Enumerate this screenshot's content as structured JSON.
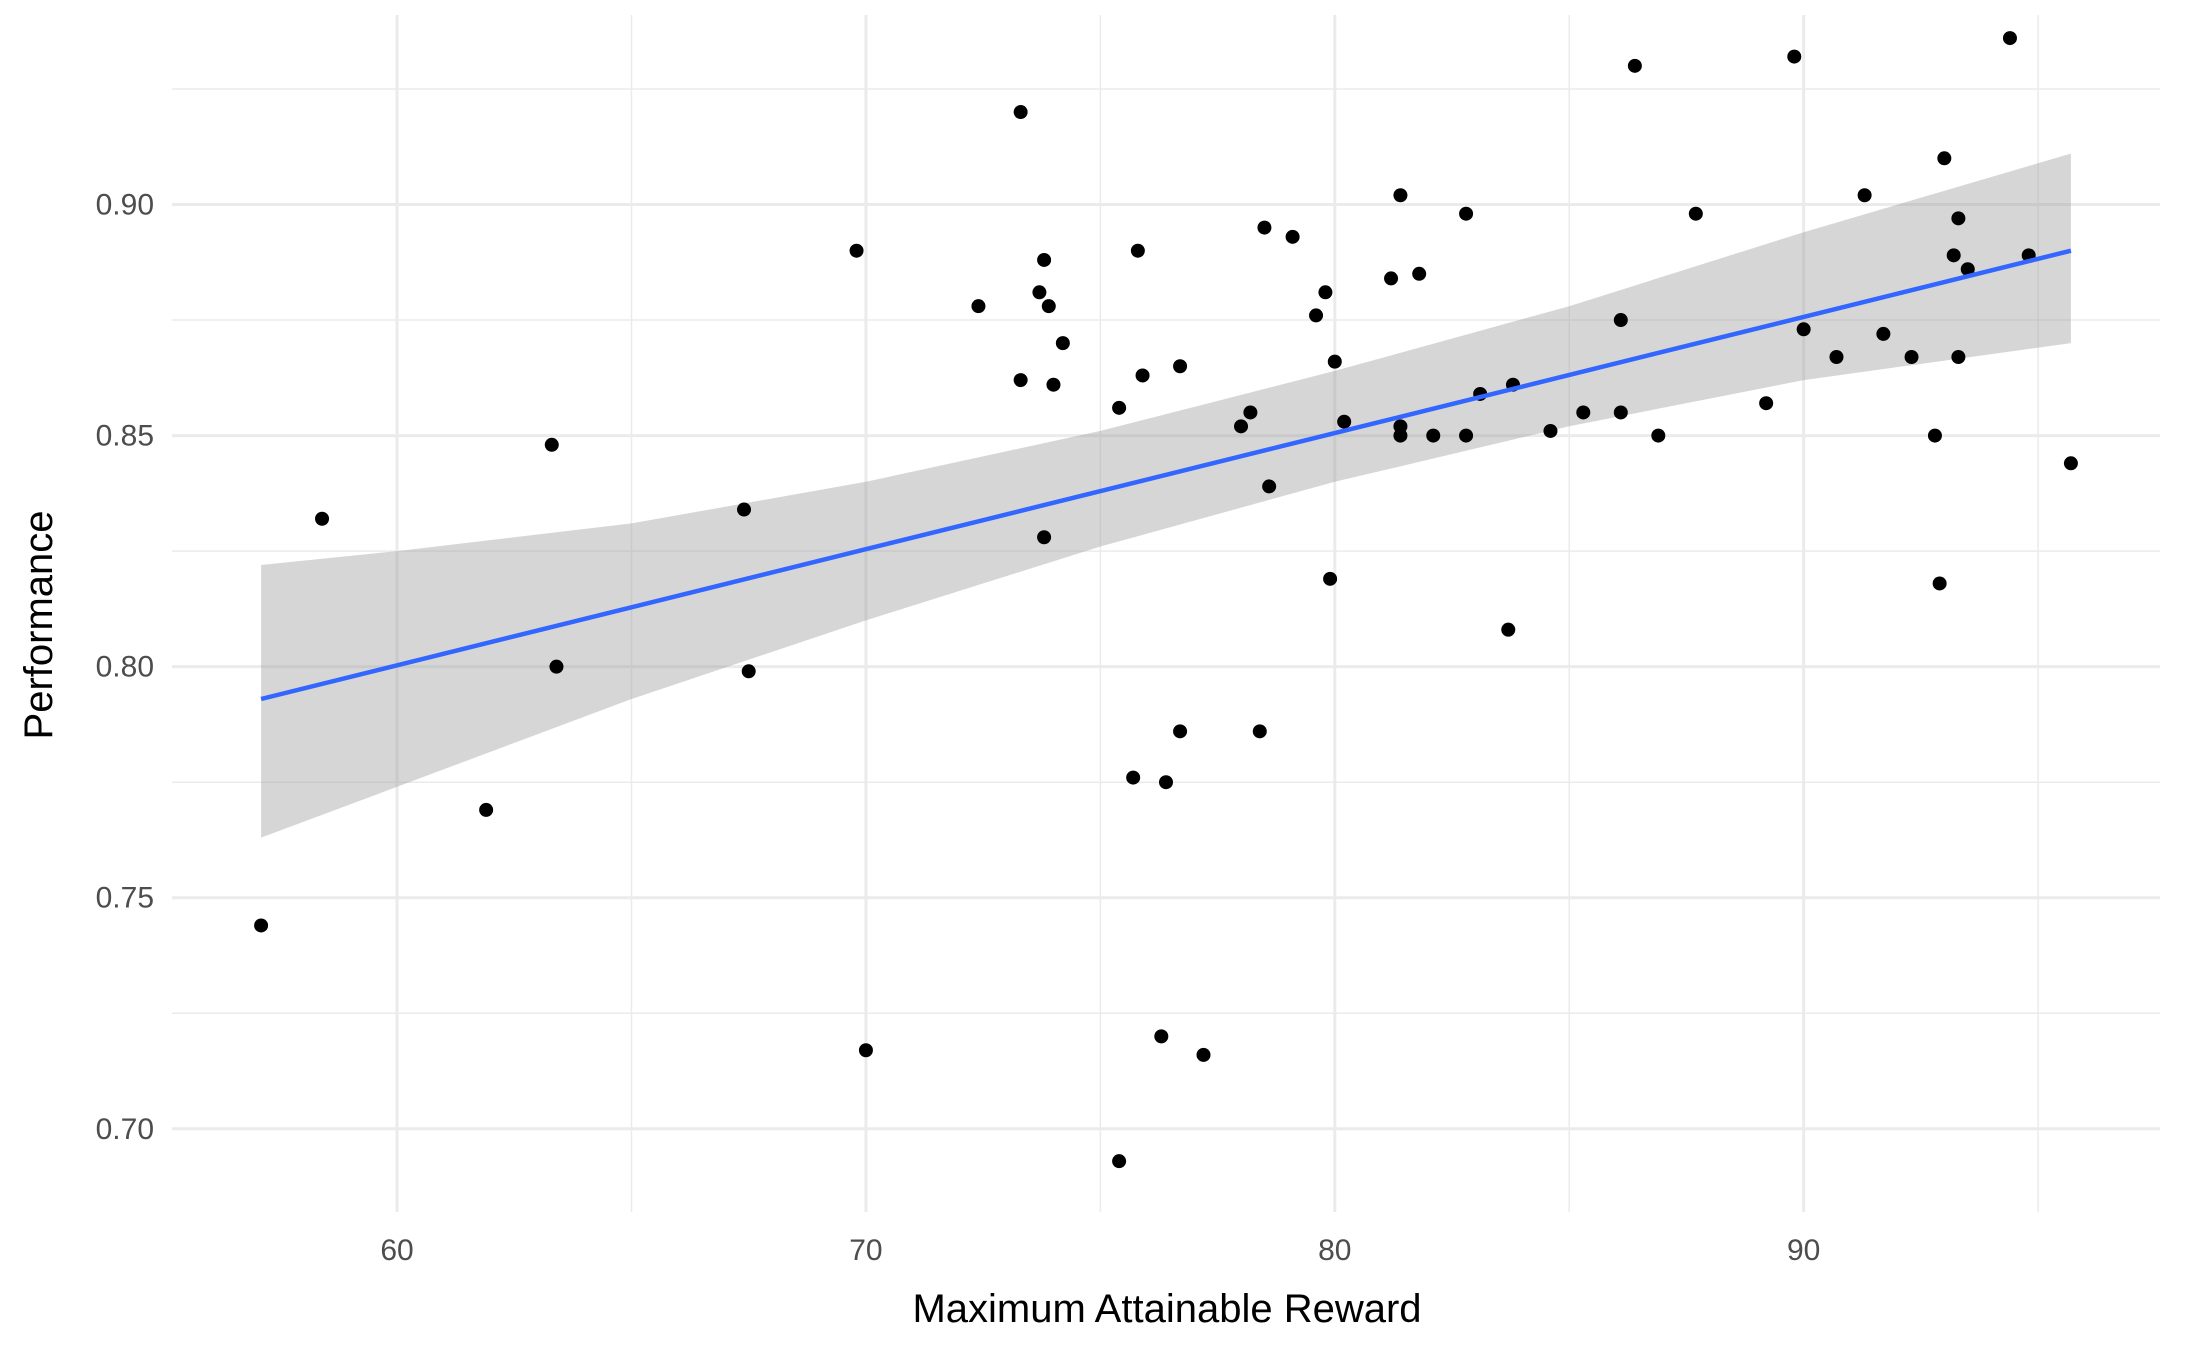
{
  "chart_data": {
    "type": "scatter",
    "title": "",
    "xlabel": "Maximum Attainable Reward",
    "ylabel": "Performance",
    "xlim": [
      55.2,
      97.6
    ],
    "ylim": [
      0.682,
      0.941
    ],
    "x_ticks": [
      60,
      70,
      80,
      90
    ],
    "x_tick_labels": [
      "60",
      "70",
      "80",
      "90"
    ],
    "x_minor_ticks": [
      65,
      75,
      85,
      95
    ],
    "y_ticks": [
      0.7,
      0.75,
      0.8,
      0.85,
      0.9
    ],
    "y_tick_labels": [
      "0.70",
      "0.75",
      "0.80",
      "0.85",
      "0.90"
    ],
    "y_minor_ticks": [
      0.725,
      0.775,
      0.825,
      0.875,
      0.925
    ],
    "grid": true,
    "legend": "none",
    "colors": {
      "points": "#000000",
      "fit_line": "#3366FF",
      "confidence_band": "#999999",
      "grid": "#ebebeb"
    },
    "points": [
      {
        "x": 57.1,
        "y": 0.744
      },
      {
        "x": 58.4,
        "y": 0.832
      },
      {
        "x": 61.9,
        "y": 0.769
      },
      {
        "x": 63.3,
        "y": 0.848
      },
      {
        "x": 63.4,
        "y": 0.8
      },
      {
        "x": 67.4,
        "y": 0.834
      },
      {
        "x": 67.5,
        "y": 0.799
      },
      {
        "x": 69.8,
        "y": 0.89
      },
      {
        "x": 70.0,
        "y": 0.717
      },
      {
        "x": 72.4,
        "y": 0.878
      },
      {
        "x": 73.3,
        "y": 0.92
      },
      {
        "x": 73.3,
        "y": 0.862
      },
      {
        "x": 73.7,
        "y": 0.881
      },
      {
        "x": 73.8,
        "y": 0.888
      },
      {
        "x": 73.8,
        "y": 0.828
      },
      {
        "x": 73.9,
        "y": 0.878
      },
      {
        "x": 74.0,
        "y": 0.861
      },
      {
        "x": 74.2,
        "y": 0.87
      },
      {
        "x": 75.4,
        "y": 0.856
      },
      {
        "x": 75.4,
        "y": 0.693
      },
      {
        "x": 75.7,
        "y": 0.776
      },
      {
        "x": 75.8,
        "y": 0.89
      },
      {
        "x": 75.9,
        "y": 0.863
      },
      {
        "x": 76.3,
        "y": 0.72
      },
      {
        "x": 76.4,
        "y": 0.775
      },
      {
        "x": 76.7,
        "y": 0.865
      },
      {
        "x": 76.7,
        "y": 0.786
      },
      {
        "x": 77.2,
        "y": 0.716
      },
      {
        "x": 78.0,
        "y": 0.852
      },
      {
        "x": 78.2,
        "y": 0.855
      },
      {
        "x": 78.4,
        "y": 0.786
      },
      {
        "x": 78.5,
        "y": 0.895
      },
      {
        "x": 78.6,
        "y": 0.839
      },
      {
        "x": 79.1,
        "y": 0.893
      },
      {
        "x": 79.6,
        "y": 0.876
      },
      {
        "x": 79.8,
        "y": 0.881
      },
      {
        "x": 79.9,
        "y": 0.819
      },
      {
        "x": 80.0,
        "y": 0.866
      },
      {
        "x": 80.2,
        "y": 0.853
      },
      {
        "x": 81.2,
        "y": 0.884
      },
      {
        "x": 81.4,
        "y": 0.852
      },
      {
        "x": 81.4,
        "y": 0.85
      },
      {
        "x": 81.4,
        "y": 0.902
      },
      {
        "x": 81.8,
        "y": 0.885
      },
      {
        "x": 82.1,
        "y": 0.85
      },
      {
        "x": 82.8,
        "y": 0.898
      },
      {
        "x": 82.8,
        "y": 0.85
      },
      {
        "x": 83.1,
        "y": 0.859
      },
      {
        "x": 83.7,
        "y": 0.808
      },
      {
        "x": 83.8,
        "y": 0.861
      },
      {
        "x": 84.6,
        "y": 0.851
      },
      {
        "x": 85.3,
        "y": 0.855
      },
      {
        "x": 86.1,
        "y": 0.875
      },
      {
        "x": 86.1,
        "y": 0.855
      },
      {
        "x": 86.4,
        "y": 0.93
      },
      {
        "x": 86.9,
        "y": 0.85
      },
      {
        "x": 87.7,
        "y": 0.898
      },
      {
        "x": 89.2,
        "y": 0.857
      },
      {
        "x": 89.8,
        "y": 0.932
      },
      {
        "x": 90.0,
        "y": 0.873
      },
      {
        "x": 90.7,
        "y": 0.867
      },
      {
        "x": 91.3,
        "y": 0.902
      },
      {
        "x": 91.7,
        "y": 0.872
      },
      {
        "x": 92.3,
        "y": 0.867
      },
      {
        "x": 92.8,
        "y": 0.85
      },
      {
        "x": 92.9,
        "y": 0.818
      },
      {
        "x": 93.0,
        "y": 0.91
      },
      {
        "x": 93.2,
        "y": 0.889
      },
      {
        "x": 93.3,
        "y": 0.897
      },
      {
        "x": 93.3,
        "y": 0.867
      },
      {
        "x": 93.5,
        "y": 0.886
      },
      {
        "x": 94.4,
        "y": 0.936
      },
      {
        "x": 94.8,
        "y": 0.889
      },
      {
        "x": 95.7,
        "y": 0.844
      }
    ],
    "fit_line": {
      "x": [
        57.1,
        95.7
      ],
      "y": [
        0.793,
        0.89
      ]
    },
    "confidence_band": {
      "x": [
        57.1,
        60.0,
        65.0,
        70.0,
        75.0,
        80.0,
        85.0,
        90.0,
        95.7
      ],
      "lower": [
        0.763,
        0.774,
        0.793,
        0.81,
        0.826,
        0.84,
        0.852,
        0.862,
        0.87
      ],
      "upper": [
        0.822,
        0.825,
        0.831,
        0.84,
        0.851,
        0.864,
        0.878,
        0.894,
        0.911
      ]
    }
  }
}
